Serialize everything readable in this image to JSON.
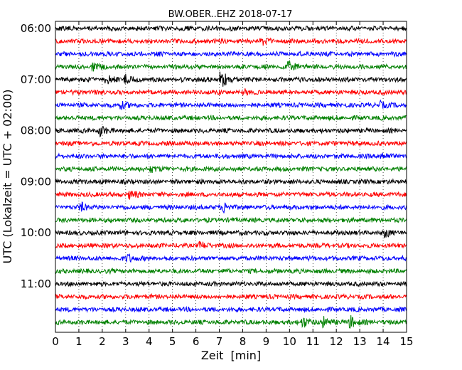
{
  "chart_data": {
    "type": "line",
    "subtype": "helicorder seismogram",
    "title": "BW.OBER..EHZ 2018-07-17",
    "xlabel": "Zeit  [min]",
    "ylabel": "UTC (Lokalzeit = UTC + 02:00)",
    "xlim": [
      0,
      15
    ],
    "x_ticks": [
      0,
      1,
      2,
      3,
      4,
      5,
      6,
      7,
      8,
      9,
      10,
      11,
      12,
      13,
      14,
      15
    ],
    "x_tick_labels": [
      "0",
      "1",
      "2",
      "3",
      "4",
      "5",
      "6",
      "7",
      "8",
      "9",
      "10",
      "11",
      "12",
      "13",
      "14",
      "15"
    ],
    "row_duration_min": 15,
    "start_time": "06:00",
    "y_tick_labels": [
      "06:00",
      "07:00",
      "08:00",
      "09:00",
      "10:00",
      "11:00"
    ],
    "grid": {
      "vertical": "dotted at every minute",
      "horizontal": "none"
    },
    "colors": [
      "#000000",
      "#ff0000",
      "#0000ff",
      "#008000"
    ],
    "traces": [
      {
        "row": 0,
        "label": "06:00",
        "color": "#000000"
      },
      {
        "row": 1,
        "label": "",
        "color": "#ff0000"
      },
      {
        "row": 2,
        "label": "",
        "color": "#0000ff"
      },
      {
        "row": 3,
        "label": "",
        "color": "#008000"
      },
      {
        "row": 4,
        "label": "07:00",
        "color": "#000000"
      },
      {
        "row": 5,
        "label": "",
        "color": "#ff0000"
      },
      {
        "row": 6,
        "label": "",
        "color": "#0000ff"
      },
      {
        "row": 7,
        "label": "",
        "color": "#008000"
      },
      {
        "row": 8,
        "label": "08:00",
        "color": "#000000"
      },
      {
        "row": 9,
        "label": "",
        "color": "#ff0000"
      },
      {
        "row": 10,
        "label": "",
        "color": "#0000ff"
      },
      {
        "row": 11,
        "label": "",
        "color": "#008000"
      },
      {
        "row": 12,
        "label": "09:00",
        "color": "#000000"
      },
      {
        "row": 13,
        "label": "",
        "color": "#ff0000"
      },
      {
        "row": 14,
        "label": "",
        "color": "#0000ff"
      },
      {
        "row": 15,
        "label": "",
        "color": "#008000"
      },
      {
        "row": 16,
        "label": "10:00",
        "color": "#000000"
      },
      {
        "row": 17,
        "label": "",
        "color": "#ff0000"
      },
      {
        "row": 18,
        "label": "",
        "color": "#0000ff"
      },
      {
        "row": 19,
        "label": "",
        "color": "#008000"
      },
      {
        "row": 20,
        "label": "11:00",
        "color": "#000000"
      },
      {
        "row": 21,
        "label": "",
        "color": "#ff0000"
      },
      {
        "row": 22,
        "label": "",
        "color": "#0000ff"
      },
      {
        "row": 23,
        "label": "",
        "color": "#008000"
      }
    ],
    "events": [
      {
        "row": 1,
        "time_min": 8.8,
        "amplitude": 0.6
      },
      {
        "row": 3,
        "time_min": 1.6,
        "amplitude": 0.7
      },
      {
        "row": 3,
        "time_min": 10.0,
        "amplitude": 0.9
      },
      {
        "row": 4,
        "time_min": 2.2,
        "amplitude": 0.6
      },
      {
        "row": 4,
        "time_min": 3.0,
        "amplitude": 0.6
      },
      {
        "row": 4,
        "time_min": 7.1,
        "amplitude": 1.4
      },
      {
        "row": 5,
        "time_min": 8.0,
        "amplitude": 0.5
      },
      {
        "row": 6,
        "time_min": 2.8,
        "amplitude": 0.6
      },
      {
        "row": 6,
        "time_min": 13.9,
        "amplitude": 0.5
      },
      {
        "row": 8,
        "time_min": 1.9,
        "amplitude": 0.8
      },
      {
        "row": 10,
        "time_min": 13.9,
        "amplitude": 0.6
      },
      {
        "row": 11,
        "time_min": 4.1,
        "amplitude": 0.5
      },
      {
        "row": 13,
        "time_min": 3.2,
        "amplitude": 0.6
      },
      {
        "row": 14,
        "time_min": 1.1,
        "amplitude": 0.6
      },
      {
        "row": 14,
        "time_min": 7.2,
        "amplitude": 0.7
      },
      {
        "row": 16,
        "time_min": 14.1,
        "amplitude": 0.6
      },
      {
        "row": 17,
        "time_min": 6.2,
        "amplitude": 0.5
      },
      {
        "row": 18,
        "time_min": 3.1,
        "amplitude": 0.6
      },
      {
        "row": 23,
        "time_min": 10.6,
        "amplitude": 0.8
      },
      {
        "row": 23,
        "time_min": 11.5,
        "amplitude": 0.8
      },
      {
        "row": 23,
        "time_min": 12.6,
        "amplitude": 1.0
      }
    ]
  }
}
